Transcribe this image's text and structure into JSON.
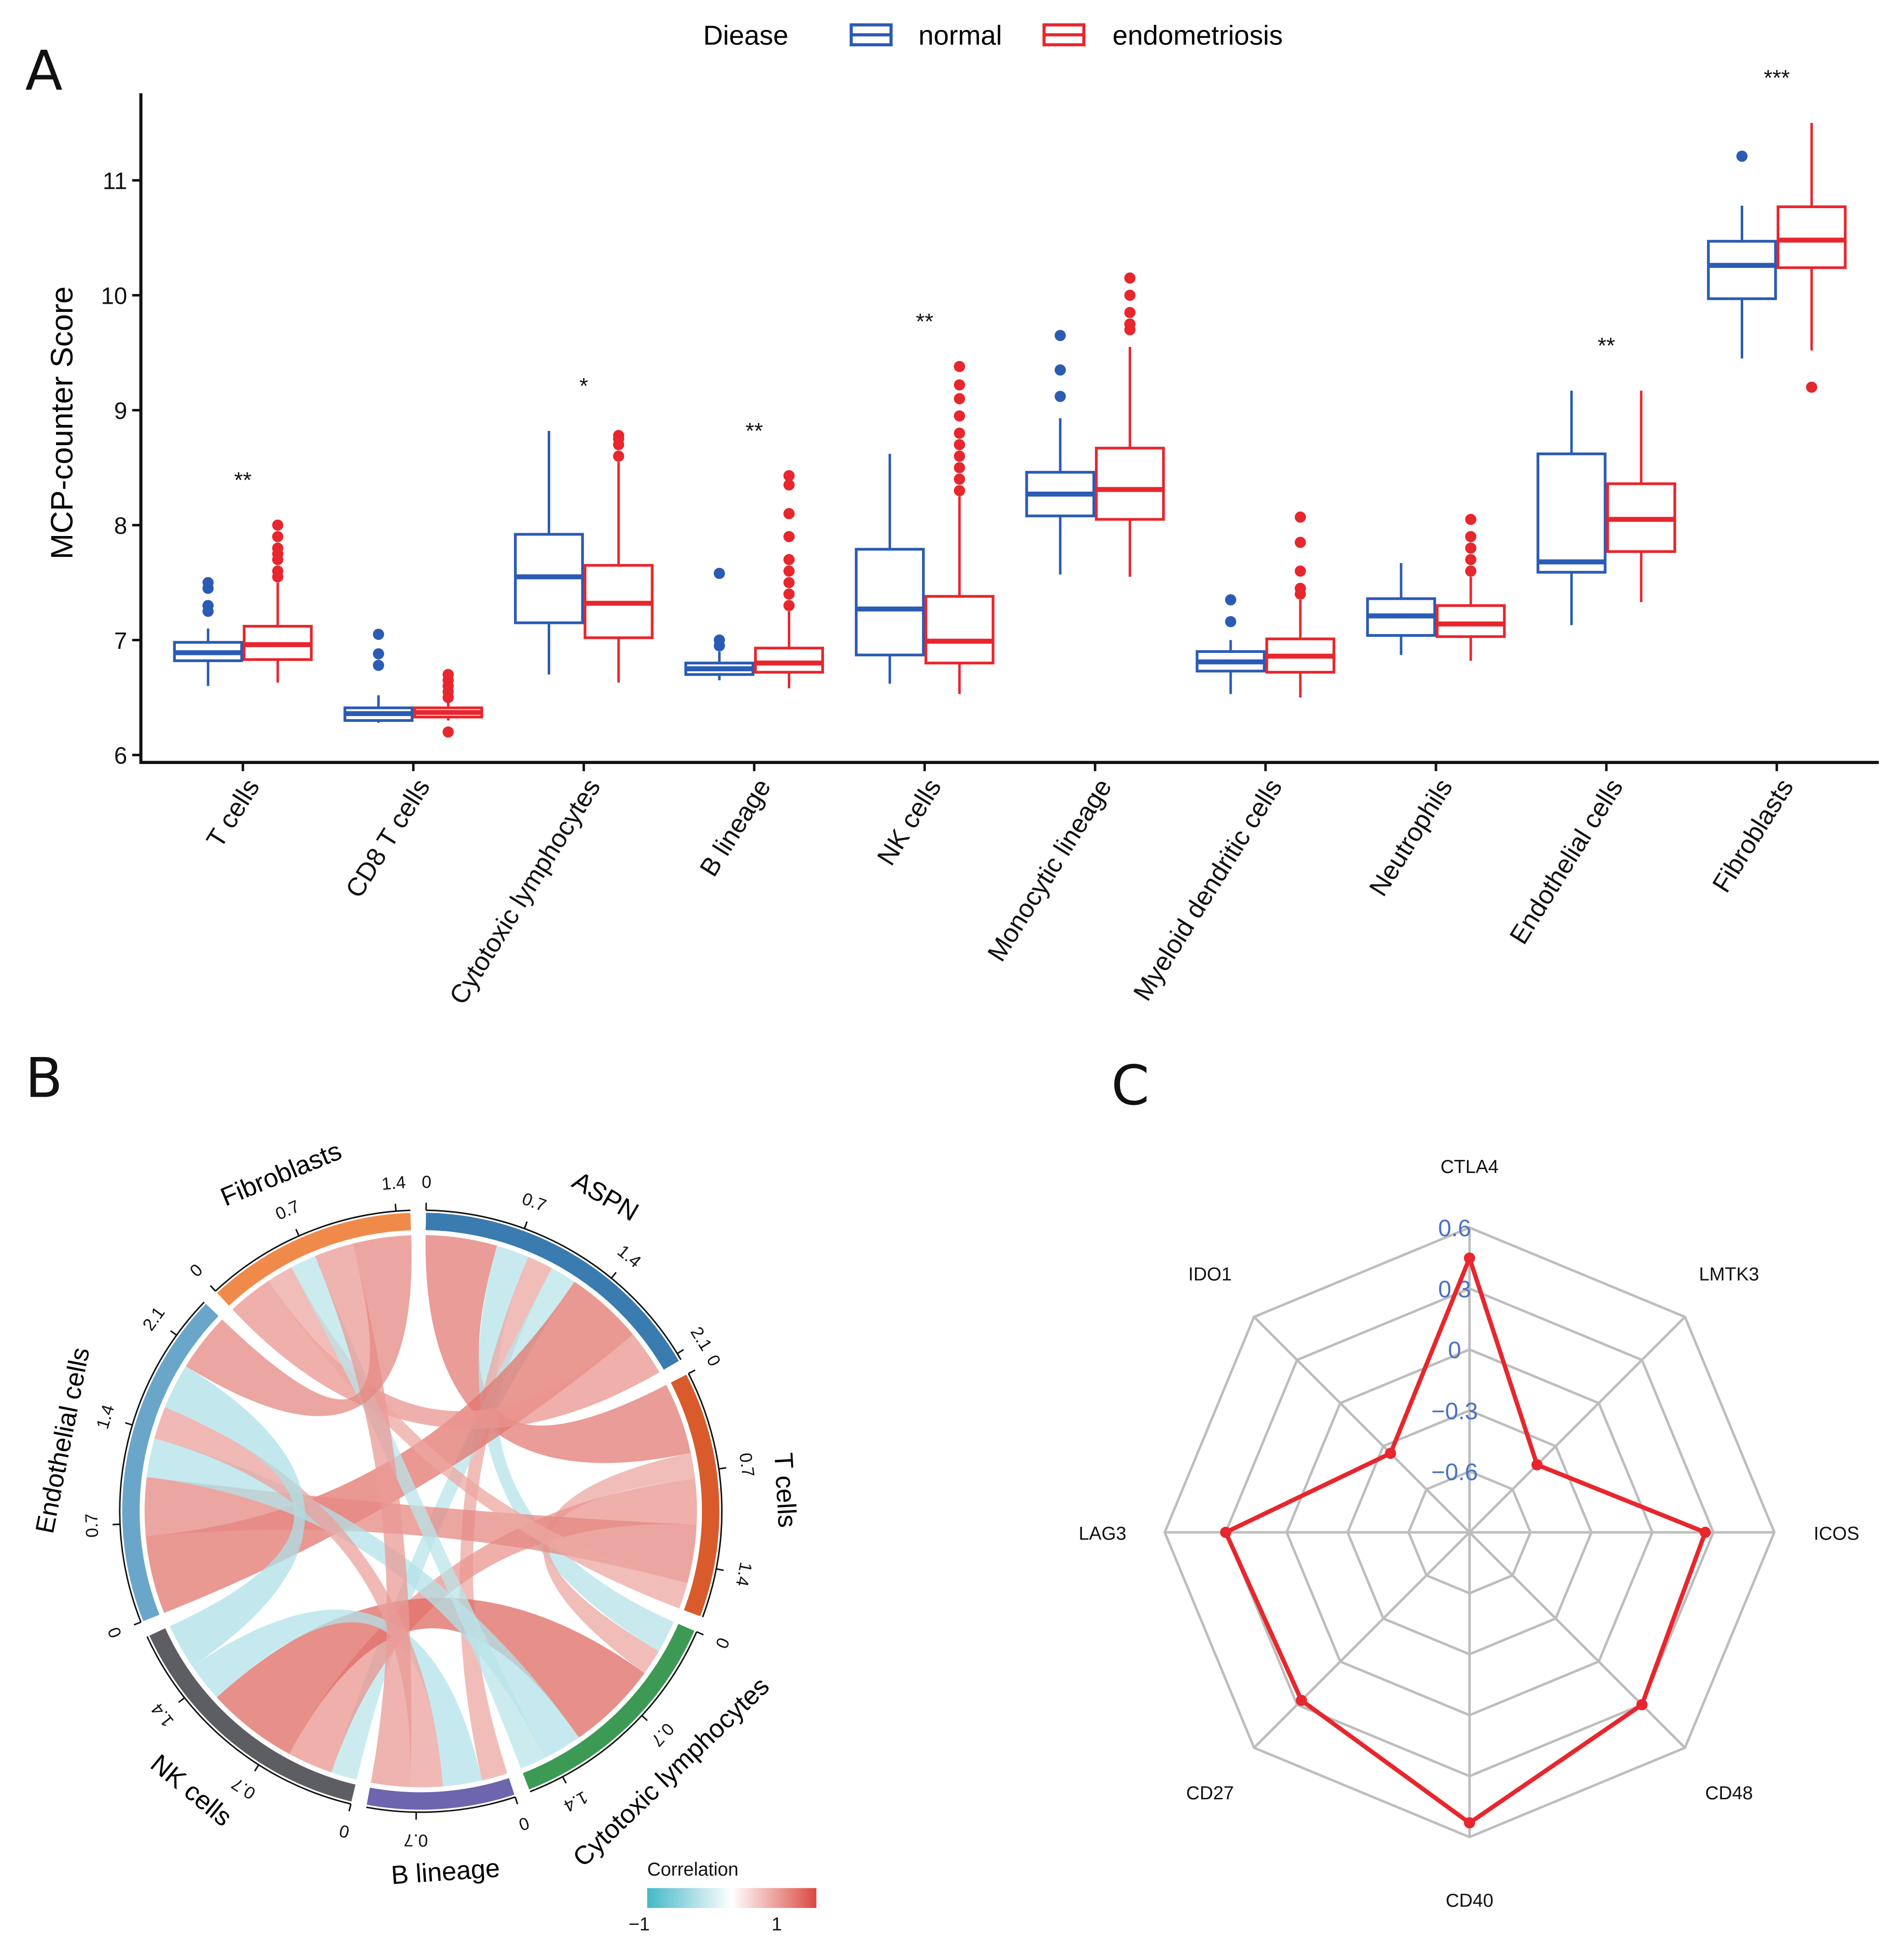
{
  "panels": {
    "a": "A",
    "b": "B",
    "c": "C"
  },
  "chart_data": [
    {
      "type": "box",
      "ylabel": "MCP-counter Score",
      "ylim": [
        6,
        11.7
      ],
      "yticks": [
        6,
        7,
        8,
        9,
        10,
        11
      ],
      "legend": {
        "title": "Diease",
        "position": "top",
        "entries": [
          "normal",
          "endometriosis"
        ]
      },
      "colors": {
        "normal": "#2a5bb5",
        "endometriosis": "#e8262d"
      },
      "categories": [
        "T cells",
        "CD8 T cells",
        "Cytotoxic lymphocytes",
        "B lineage",
        "NK cells",
        "Monocytic lineage",
        "Myeloid dendritic cells",
        "Neutrophils",
        "Endothelial cells",
        "Fibroblasts"
      ],
      "significance": [
        "**",
        "",
        "*",
        "**",
        "**",
        "",
        "",
        "",
        "**",
        "***"
      ],
      "series": [
        {
          "name": "normal",
          "boxes": [
            {
              "min": 6.6,
              "q1": 6.82,
              "median": 6.89,
              "q3": 6.98,
              "max": 7.1,
              "outliers": [
                7.25,
                7.3,
                7.45,
                7.5
              ]
            },
            {
              "min": 6.28,
              "q1": 6.3,
              "median": 6.36,
              "q3": 6.41,
              "max": 6.52,
              "outliers": [
                6.78,
                6.88,
                7.05
              ]
            },
            {
              "min": 6.7,
              "q1": 7.15,
              "median": 7.55,
              "q3": 7.92,
              "max": 8.82,
              "outliers": []
            },
            {
              "min": 6.65,
              "q1": 6.7,
              "median": 6.75,
              "q3": 6.8,
              "max": 6.9,
              "outliers": [
                6.95,
                7.0,
                7.58
              ]
            },
            {
              "min": 6.62,
              "q1": 6.87,
              "median": 7.27,
              "q3": 7.79,
              "max": 8.62,
              "outliers": []
            },
            {
              "min": 7.57,
              "q1": 8.08,
              "median": 8.27,
              "q3": 8.46,
              "max": 8.93,
              "outliers": [
                9.12,
                9.35,
                9.65
              ]
            },
            {
              "min": 6.53,
              "q1": 6.73,
              "median": 6.81,
              "q3": 6.9,
              "max": 7.0,
              "outliers": [
                7.16,
                7.35
              ]
            },
            {
              "min": 6.87,
              "q1": 7.04,
              "median": 7.21,
              "q3": 7.36,
              "max": 7.67,
              "outliers": []
            },
            {
              "min": 7.13,
              "q1": 7.59,
              "median": 7.68,
              "q3": 8.62,
              "max": 9.17,
              "outliers": []
            },
            {
              "min": 9.45,
              "q1": 9.97,
              "median": 10.26,
              "q3": 10.47,
              "max": 10.78,
              "outliers": [
                11.21
              ]
            }
          ]
        },
        {
          "name": "endometriosis",
          "boxes": [
            {
              "min": 6.63,
              "q1": 6.83,
              "median": 6.96,
              "q3": 7.12,
              "max": 7.5,
              "outliers": [
                7.55,
                7.6,
                7.7,
                7.75,
                7.8,
                7.9,
                8.0
              ]
            },
            {
              "min": 6.3,
              "q1": 6.33,
              "median": 6.37,
              "q3": 6.41,
              "max": 6.47,
              "outliers": [
                6.2,
                6.5,
                6.55,
                6.6,
                6.65,
                6.7
              ]
            },
            {
              "min": 6.63,
              "q1": 7.02,
              "median": 7.32,
              "q3": 7.65,
              "max": 8.55,
              "outliers": [
                8.6,
                8.7,
                8.75,
                8.78
              ]
            },
            {
              "min": 6.58,
              "q1": 6.72,
              "median": 6.8,
              "q3": 6.93,
              "max": 7.25,
              "outliers": [
                7.3,
                7.4,
                7.5,
                7.6,
                7.7,
                7.9,
                8.1,
                8.35,
                8.43
              ]
            },
            {
              "min": 6.53,
              "q1": 6.8,
              "median": 6.99,
              "q3": 7.38,
              "max": 8.25,
              "outliers": [
                8.3,
                8.4,
                8.5,
                8.6,
                8.7,
                8.8,
                8.95,
                9.1,
                9.22,
                9.38
              ]
            },
            {
              "min": 7.55,
              "q1": 8.05,
              "median": 8.31,
              "q3": 8.67,
              "max": 9.55,
              "outliers": [
                9.7,
                9.75,
                9.85,
                10.0,
                10.15
              ]
            },
            {
              "min": 6.5,
              "q1": 6.72,
              "median": 6.86,
              "q3": 7.01,
              "max": 7.35,
              "outliers": [
                7.4,
                7.45,
                7.6,
                7.85,
                8.07
              ]
            },
            {
              "min": 6.82,
              "q1": 7.03,
              "median": 7.14,
              "q3": 7.3,
              "max": 7.55,
              "outliers": [
                7.6,
                7.7,
                7.8,
                7.9,
                8.05
              ]
            },
            {
              "min": 7.33,
              "q1": 7.77,
              "median": 8.05,
              "q3": 8.36,
              "max": 9.17,
              "outliers": []
            },
            {
              "min": 9.52,
              "q1": 10.24,
              "median": 10.48,
              "q3": 10.77,
              "max": 11.5,
              "outliers": [
                9.2
              ]
            }
          ]
        }
      ]
    },
    {
      "type": "chord",
      "sectors": [
        {
          "name": "ASPN",
          "color": "#3a7bb0"
        },
        {
          "name": "T cells",
          "color": "#d95b2b"
        },
        {
          "name": "Cytotoxic lymphocytes",
          "color": "#3c9a54"
        },
        {
          "name": "B lineage",
          "color": "#6d65ad"
        },
        {
          "name": "NK cells",
          "color": "#5d5e62"
        },
        {
          "name": "Endothelial cells",
          "color": "#6aa6c9"
        },
        {
          "name": "Fibroblasts",
          "color": "#f08a4b"
        }
      ],
      "axis_ticks": [
        0,
        0.7,
        1.4,
        2.1
      ],
      "links": [
        {
          "from": "ASPN",
          "to": "T cells",
          "value": 0.55
        },
        {
          "from": "ASPN",
          "to": "Cytotoxic lymphocytes",
          "value": -0.25
        },
        {
          "from": "ASPN",
          "to": "B lineage",
          "value": 0.2
        },
        {
          "from": "ASPN",
          "to": "NK cells",
          "value": -0.2
        },
        {
          "from": "ASPN",
          "to": "Endothelial cells",
          "value": 0.6
        },
        {
          "from": "ASPN",
          "to": "Fibroblasts",
          "value": 0.35
        },
        {
          "from": "T cells",
          "to": "Cytotoxic lymphocytes",
          "value": 0.2
        },
        {
          "from": "T cells",
          "to": "NK cells",
          "value": 0.35
        },
        {
          "from": "T cells",
          "to": "Endothelial cells",
          "value": 0.45
        },
        {
          "from": "T cells",
          "to": "Fibroblasts",
          "value": 0.2
        },
        {
          "from": "Cytotoxic lymphocytes",
          "to": "NK cells",
          "value": 0.7
        },
        {
          "from": "Cytotoxic lymphocytes",
          "to": "Endothelial cells",
          "value": -0.3
        },
        {
          "from": "Cytotoxic lymphocytes",
          "to": "Fibroblasts",
          "value": -0.2
        },
        {
          "from": "B lineage",
          "to": "NK cells",
          "value": -0.3
        },
        {
          "from": "B lineage",
          "to": "Endothelial cells",
          "value": 0.25
        },
        {
          "from": "B lineage",
          "to": "Fibroblasts",
          "value": 0.3
        },
        {
          "from": "NK cells",
          "to": "Endothelial cells",
          "value": -0.35
        },
        {
          "from": "Endothelial cells",
          "to": "Fibroblasts",
          "value": 0.45
        }
      ],
      "legend": {
        "title": "Correlation",
        "min_label": "−1",
        "max_label": "1",
        "low_color": "#44b8c8",
        "mid_color": "#ffffff",
        "high_color": "#d94a41"
      }
    },
    {
      "type": "radar",
      "axes": [
        "CTLA4",
        "LMTK3",
        "ICOS",
        "CD48",
        "CD40",
        "CD27",
        "LAG3",
        "IDO1"
      ],
      "values": [
        0.45,
        -0.43,
        0.26,
        0.3,
        0.53,
        0.27,
        0.3,
        -0.35
      ],
      "ring_labels": [
        "0.6",
        "0.3",
        "0",
        "−0.3",
        "−0.6"
      ],
      "ring_values": [
        0.6,
        0.3,
        0,
        -0.3,
        -0.6
      ],
      "center_value": -0.9,
      "line_color": "#e8262d",
      "ring_label_color": "#4a72c0"
    }
  ]
}
